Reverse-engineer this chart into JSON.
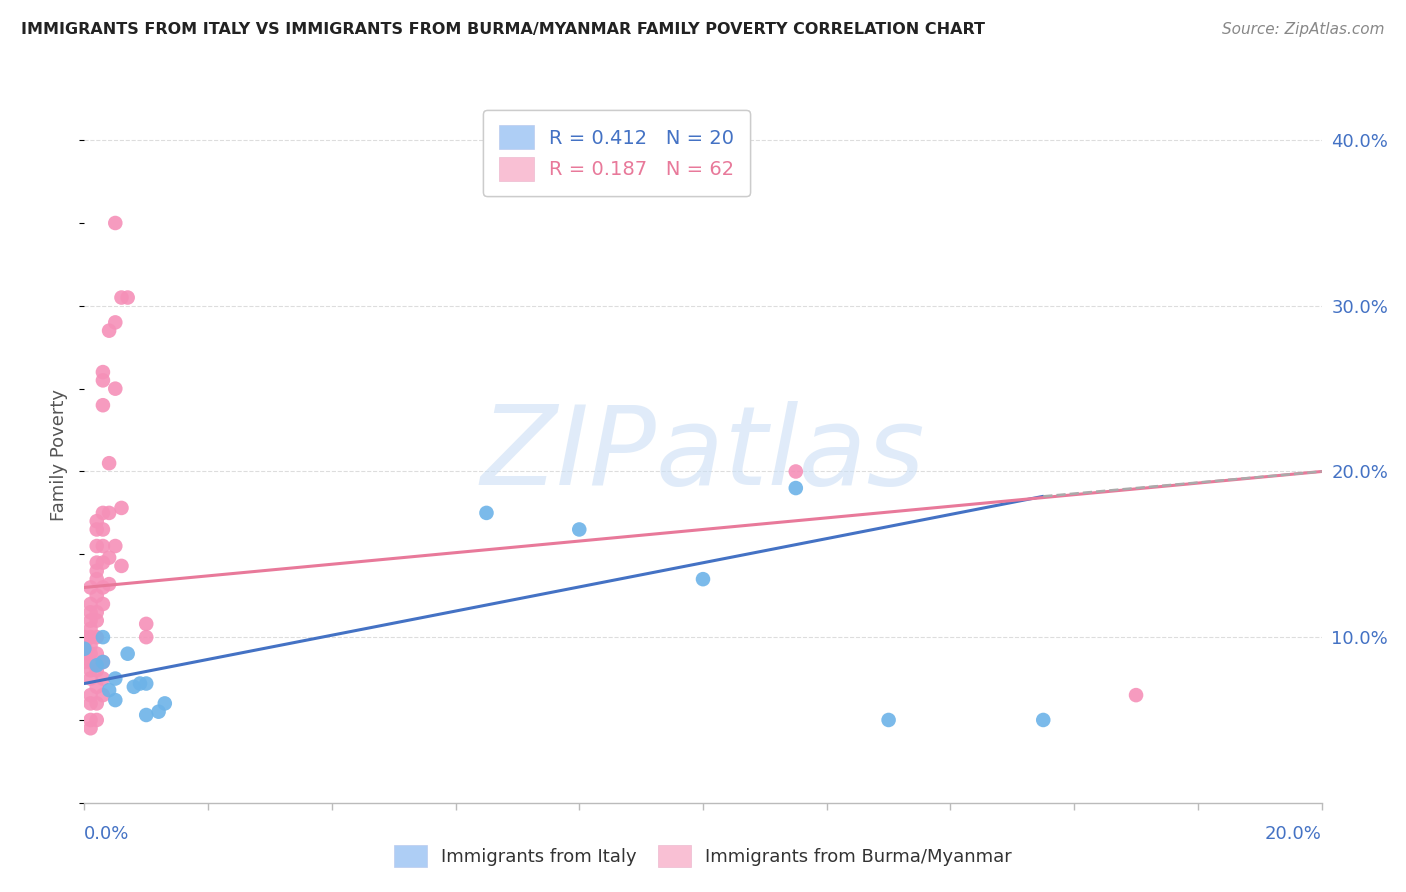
{
  "title": "IMMIGRANTS FROM ITALY VS IMMIGRANTS FROM BURMA/MYANMAR FAMILY POVERTY CORRELATION CHART",
  "source": "Source: ZipAtlas.com",
  "ylabel": "Family Poverty",
  "legend_xlabel_italy": "Immigrants from Italy",
  "legend_xlabel_burma": "Immigrants from Burma/Myanmar",
  "watermark": "ZIPatlas",
  "xlim": [
    0.0,
    0.2
  ],
  "ylim": [
    0.0,
    0.42
  ],
  "italy_scatter": [
    [
      0.0,
      0.093
    ],
    [
      0.002,
      0.083
    ],
    [
      0.003,
      0.085
    ],
    [
      0.003,
      0.1
    ],
    [
      0.004,
      0.068
    ],
    [
      0.005,
      0.062
    ],
    [
      0.005,
      0.075
    ],
    [
      0.007,
      0.09
    ],
    [
      0.008,
      0.07
    ],
    [
      0.009,
      0.072
    ],
    [
      0.01,
      0.072
    ],
    [
      0.01,
      0.053
    ],
    [
      0.012,
      0.055
    ],
    [
      0.013,
      0.06
    ],
    [
      0.065,
      0.175
    ],
    [
      0.08,
      0.165
    ],
    [
      0.1,
      0.135
    ],
    [
      0.115,
      0.19
    ],
    [
      0.13,
      0.05
    ],
    [
      0.155,
      0.05
    ]
  ],
  "burma_scatter": [
    [
      0.0,
      0.1
    ],
    [
      0.0,
      0.095
    ],
    [
      0.0,
      0.09
    ],
    [
      0.0,
      0.085
    ],
    [
      0.001,
      0.13
    ],
    [
      0.001,
      0.12
    ],
    [
      0.001,
      0.115
    ],
    [
      0.001,
      0.11
    ],
    [
      0.001,
      0.105
    ],
    [
      0.001,
      0.1
    ],
    [
      0.001,
      0.095
    ],
    [
      0.001,
      0.09
    ],
    [
      0.001,
      0.085
    ],
    [
      0.001,
      0.08
    ],
    [
      0.001,
      0.075
    ],
    [
      0.001,
      0.065
    ],
    [
      0.001,
      0.06
    ],
    [
      0.001,
      0.05
    ],
    [
      0.001,
      0.045
    ],
    [
      0.002,
      0.17
    ],
    [
      0.002,
      0.165
    ],
    [
      0.002,
      0.155
    ],
    [
      0.002,
      0.145
    ],
    [
      0.002,
      0.14
    ],
    [
      0.002,
      0.135
    ],
    [
      0.002,
      0.125
    ],
    [
      0.002,
      0.115
    ],
    [
      0.002,
      0.11
    ],
    [
      0.002,
      0.1
    ],
    [
      0.002,
      0.09
    ],
    [
      0.002,
      0.08
    ],
    [
      0.002,
      0.07
    ],
    [
      0.002,
      0.06
    ],
    [
      0.002,
      0.05
    ],
    [
      0.003,
      0.26
    ],
    [
      0.003,
      0.255
    ],
    [
      0.003,
      0.24
    ],
    [
      0.003,
      0.175
    ],
    [
      0.003,
      0.165
    ],
    [
      0.003,
      0.155
    ],
    [
      0.003,
      0.145
    ],
    [
      0.003,
      0.13
    ],
    [
      0.003,
      0.12
    ],
    [
      0.003,
      0.085
    ],
    [
      0.003,
      0.075
    ],
    [
      0.003,
      0.065
    ],
    [
      0.004,
      0.285
    ],
    [
      0.004,
      0.205
    ],
    [
      0.004,
      0.175
    ],
    [
      0.004,
      0.148
    ],
    [
      0.004,
      0.132
    ],
    [
      0.005,
      0.35
    ],
    [
      0.005,
      0.29
    ],
    [
      0.005,
      0.25
    ],
    [
      0.005,
      0.155
    ],
    [
      0.006,
      0.305
    ],
    [
      0.006,
      0.178
    ],
    [
      0.006,
      0.143
    ],
    [
      0.007,
      0.305
    ],
    [
      0.01,
      0.108
    ],
    [
      0.01,
      0.1
    ],
    [
      0.115,
      0.2
    ],
    [
      0.17,
      0.065
    ]
  ],
  "italy_line_x": [
    0.0,
    0.155
  ],
  "italy_line_y": [
    0.072,
    0.185
  ],
  "italy_line_solid_end": 0.155,
  "burma_line_x": [
    0.0,
    0.2
  ],
  "burma_line_y": [
    0.13,
    0.2
  ],
  "dashed_line_x": [
    0.155,
    0.2
  ],
  "dashed_line_y": [
    0.185,
    0.2
  ],
  "italy_dot_color": "#6db3e8",
  "burma_dot_color": "#f590b8",
  "italy_line_color": "#4472c4",
  "burma_line_color": "#e8799a",
  "dashed_line_color": "#aaaaaa",
  "grid_color": "#dddddd",
  "title_color": "#222222",
  "right_axis_color": "#4472c4",
  "legend_patch_italy": "#aecef5",
  "legend_patch_burma": "#f9c0d4",
  "background_color": "#ffffff"
}
